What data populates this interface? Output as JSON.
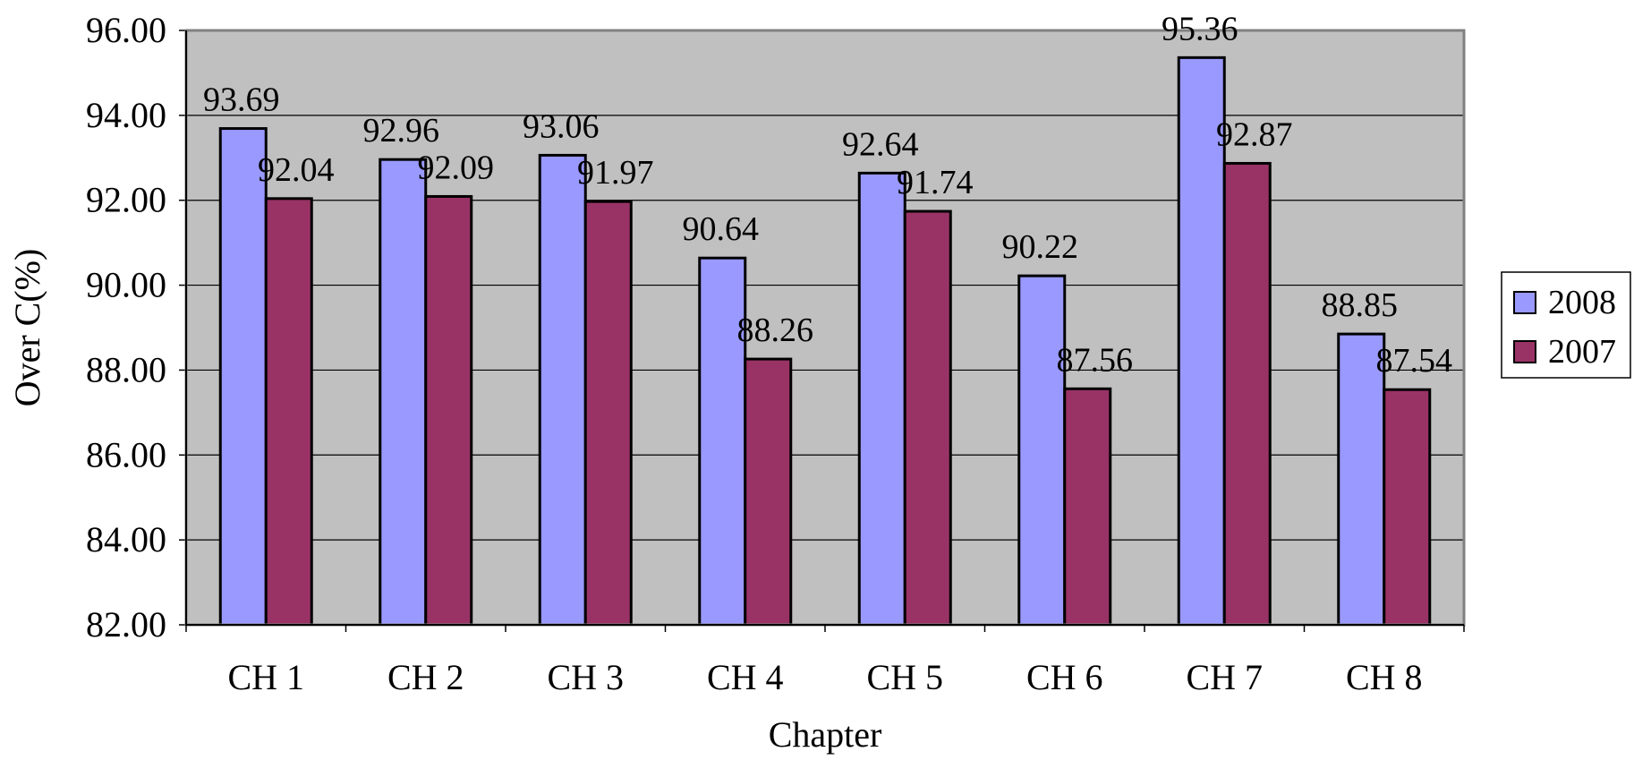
{
  "chart_data": {
    "type": "bar",
    "categories": [
      "CH 1",
      "CH 2",
      "CH 3",
      "CH 4",
      "CH 5",
      "CH 6",
      "CH 7",
      "CH 8"
    ],
    "series": [
      {
        "name": "2008",
        "values": [
          93.69,
          92.96,
          93.06,
          90.64,
          92.64,
          90.22,
          95.36,
          88.85
        ],
        "color": "#9999ff",
        "labels": [
          "93.69",
          "92.96",
          "93.06",
          "90.64",
          "92.64",
          "90.22",
          "95.36",
          "88.85"
        ]
      },
      {
        "name": "2007",
        "values": [
          92.04,
          92.09,
          91.97,
          88.26,
          91.74,
          87.56,
          92.87,
          87.54
        ],
        "color": "#993366",
        "labels": [
          "92.04",
          "92.09",
          "91.97",
          "88.26",
          "91.74",
          "87.56",
          "92.87",
          "87.54"
        ]
      }
    ],
    "xlabel": "Chapter",
    "ylabel": "Over C(%)",
    "ylim": [
      82,
      96
    ],
    "yticks": [
      "82.00",
      "84.00",
      "86.00",
      "88.00",
      "90.00",
      "92.00",
      "94.00",
      "96.00"
    ],
    "grid": true,
    "plot_background": "#c0c0c0",
    "legend_position": "right"
  }
}
